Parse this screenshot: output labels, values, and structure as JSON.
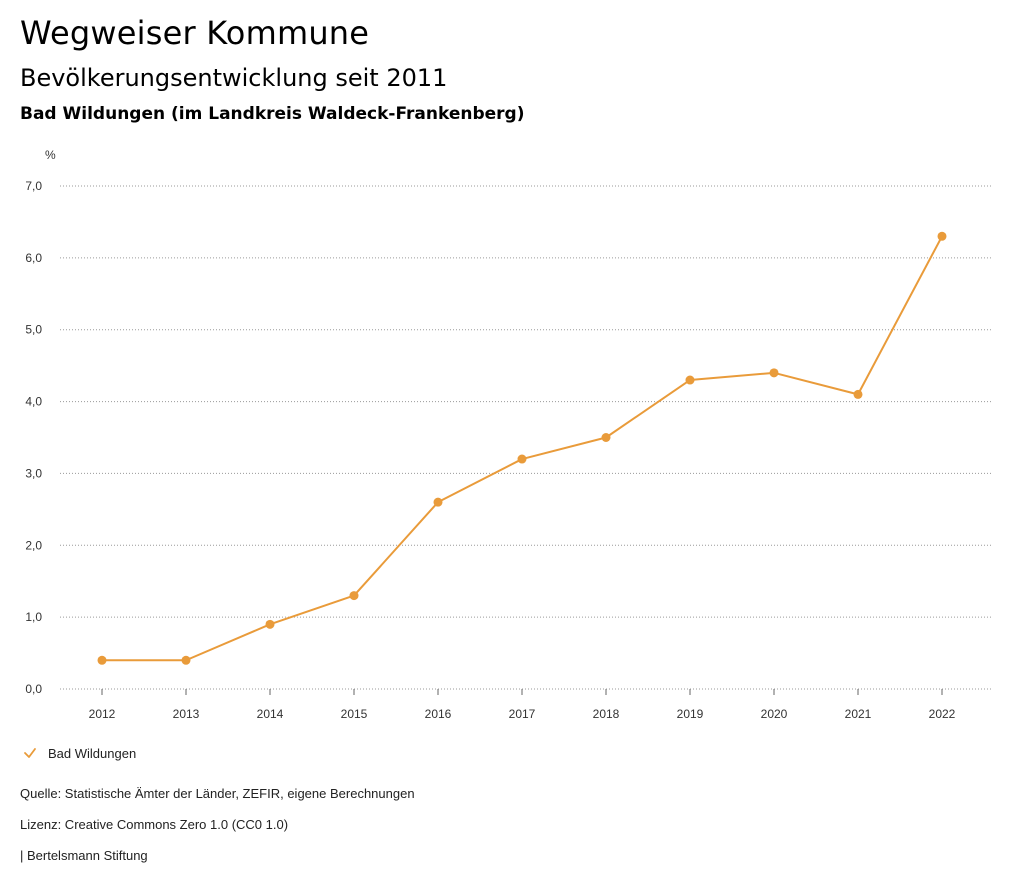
{
  "header": {
    "title": "Wegweiser Kommune",
    "subtitle": "Bevölkerungsentwicklung seit 2011",
    "region": "Bad Wildungen (im Landkreis Waldeck-Frankenberg)"
  },
  "colors": {
    "series": "#e99b3a",
    "grid": "#9a9a9a"
  },
  "chart_data": {
    "type": "line",
    "unit_label": "%",
    "x": [
      "2012",
      "2013",
      "2014",
      "2015",
      "2016",
      "2017",
      "2018",
      "2019",
      "2020",
      "2021",
      "2022"
    ],
    "series": [
      {
        "name": "Bad Wildungen",
        "values": [
          0.4,
          0.4,
          0.9,
          1.3,
          2.6,
          3.2,
          3.5,
          4.3,
          4.4,
          4.1,
          6.3
        ]
      }
    ],
    "ylim": [
      0,
      7
    ],
    "yticks": [
      0,
      1,
      2,
      3,
      4,
      5,
      6,
      7
    ],
    "ytick_labels": [
      "0,0",
      "1,0",
      "2,0",
      "3,0",
      "4,0",
      "5,0",
      "6,0",
      "7,0"
    ],
    "grid": true,
    "legend_position": "bottom-left"
  },
  "legend": {
    "label": "Bad Wildungen"
  },
  "footer": {
    "source": "Quelle: Statistische Ämter der Länder, ZEFIR, eigene Berechnungen",
    "license": "Lizenz: Creative Commons Zero 1.0 (CC0 1.0)",
    "publisher": "| Bertelsmann Stiftung"
  }
}
